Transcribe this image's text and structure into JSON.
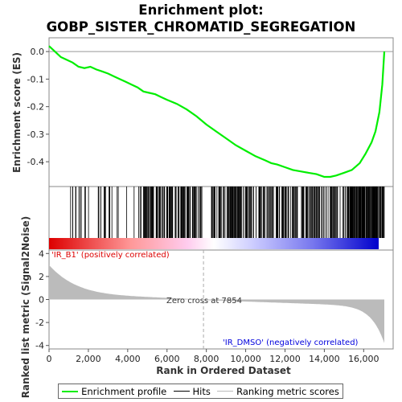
{
  "chart_data": {
    "type": "line",
    "title_line1": "Enrichment plot:",
    "title_line2": "GOBP_SISTER_CHROMATID_SEGREGATION",
    "xlabel": "Rank in Ordered Dataset",
    "ylabel_top": "Enrichment score (ES)",
    "ylabel_bottom": "Ranked list metric (Signal2Noise)",
    "x_ticks": [
      "0",
      "2,000",
      "4,000",
      "6,000",
      "8,000",
      "10,000",
      "12,000",
      "14,000",
      "16,000"
    ],
    "x_tick_values": [
      0,
      2000,
      4000,
      6000,
      8000,
      10000,
      12000,
      14000,
      16000
    ],
    "xlim": [
      0,
      17500
    ],
    "es_ylim": [
      -0.49,
      0.05
    ],
    "es_ticks": [
      "0.0",
      "-0.1",
      "-0.2",
      "-0.3",
      "-0.4"
    ],
    "es_tick_values": [
      0.0,
      -0.1,
      -0.2,
      -0.3,
      -0.4
    ],
    "metric_ylim": [
      -4.3,
      4.3
    ],
    "metric_ticks": [
      "4",
      "2",
      "0",
      "-2",
      "-4"
    ],
    "metric_tick_values": [
      4,
      2,
      0,
      -2,
      -4
    ],
    "series": [
      {
        "name": "Enrichment profile",
        "color": "#00ee00",
        "x": [
          0,
          300,
          600,
          900,
          1200,
          1500,
          1800,
          2100,
          2400,
          2700,
          3000,
          3300,
          3600,
          3900,
          4200,
          4500,
          4800,
          5100,
          5400,
          5700,
          6000,
          6500,
          7000,
          7500,
          8000,
          8500,
          9000,
          9500,
          10000,
          10500,
          11000,
          11300,
          11600,
          12000,
          12400,
          12800,
          13200,
          13600,
          14000,
          14300,
          14600,
          15000,
          15400,
          15800,
          16100,
          16400,
          16600,
          16800,
          16950,
          17050
        ],
        "y": [
          0.02,
          0.0,
          -0.02,
          -0.03,
          -0.04,
          -0.055,
          -0.06,
          -0.055,
          -0.065,
          -0.072,
          -0.08,
          -0.09,
          -0.1,
          -0.11,
          -0.12,
          -0.13,
          -0.145,
          -0.15,
          -0.155,
          -0.165,
          -0.175,
          -0.19,
          -0.21,
          -0.235,
          -0.265,
          -0.29,
          -0.315,
          -0.34,
          -0.36,
          -0.38,
          -0.395,
          -0.405,
          -0.41,
          -0.42,
          -0.43,
          -0.435,
          -0.44,
          -0.445,
          -0.455,
          -0.455,
          -0.45,
          -0.44,
          -0.43,
          -0.405,
          -0.37,
          -0.33,
          -0.29,
          -0.22,
          -0.12,
          0.0
        ]
      }
    ],
    "zero_cross_rank": 7854,
    "zero_cross_label": "Zero cross at 7854",
    "pos_label": "'IR_B1' (positively correlated)",
    "neg_label": "'IR_DMSO' (negatively correlated)",
    "pos_color": "#dd0000",
    "neg_color": "#0000dd",
    "legend": [
      {
        "label": "Enrichment profile",
        "color": "#00ee00"
      },
      {
        "label": "Hits",
        "color": "#000000"
      },
      {
        "label": "Ranking metric scores",
        "color": "#bbbbbb"
      }
    ]
  }
}
